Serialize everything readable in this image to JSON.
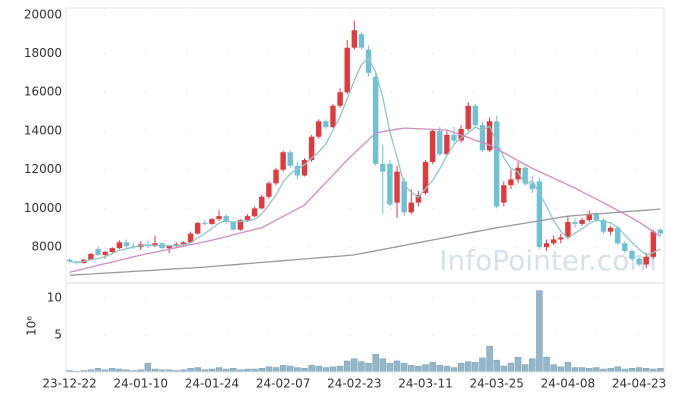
{
  "chart_data": [
    {
      "type": "candlestick",
      "watermark": "InfoPointer.com",
      "categories": [
        "23-12-22",
        null,
        null,
        null,
        null,
        null,
        null,
        null,
        null,
        null,
        "24-01-10",
        null,
        null,
        null,
        null,
        null,
        null,
        null,
        null,
        null,
        "24-01-24",
        null,
        null,
        null,
        null,
        null,
        null,
        null,
        null,
        null,
        "24-02-07",
        null,
        null,
        null,
        null,
        null,
        null,
        null,
        null,
        null,
        "24-02-23",
        null,
        null,
        null,
        null,
        null,
        null,
        null,
        null,
        null,
        "24-03-11",
        null,
        null,
        null,
        null,
        null,
        null,
        null,
        null,
        null,
        "24-03-25",
        null,
        null,
        null,
        null,
        null,
        null,
        null,
        null,
        null,
        "24-04-08",
        null,
        null,
        null,
        null,
        null,
        null,
        null,
        null,
        null,
        "24-04-23",
        null,
        null,
        null
      ],
      "open": [
        7350,
        7250,
        7180,
        7350,
        7900,
        7600,
        7750,
        7950,
        8250,
        8050,
        8000,
        8150,
        8050,
        8200,
        7950,
        8050,
        8150,
        8250,
        8700,
        9250,
        9200,
        9450,
        9600,
        9300,
        8900,
        9400,
        9600,
        10000,
        10600,
        11300,
        12000,
        12900,
        12200,
        11700,
        12500,
        13700,
        14500,
        14200,
        15300,
        16000,
        18300,
        19000,
        18200,
        16800,
        12300,
        12300,
        10300,
        11400,
        9800,
        10300,
        10800,
        12400,
        14000,
        12800,
        13800,
        13500,
        14100,
        15300,
        14300,
        13000,
        14500,
        10300,
        11200,
        11500,
        12100,
        11300,
        11400,
        8000,
        8200,
        8400,
        8500,
        9300,
        9200,
        9400,
        9700,
        9400,
        8800,
        9000,
        8200,
        7800,
        7400,
        7100,
        7500,
        8900
      ],
      "high": [
        7420,
        7300,
        7400,
        7700,
        8050,
        7800,
        8000,
        8350,
        8400,
        8200,
        8300,
        8350,
        8600,
        8250,
        8100,
        8250,
        8300,
        8800,
        9300,
        9400,
        9500,
        9900,
        9700,
        9350,
        9450,
        9700,
        10100,
        10700,
        11400,
        12100,
        13000,
        13000,
        12400,
        12600,
        13800,
        14600,
        14600,
        15400,
        16200,
        18700,
        19700,
        19100,
        18400,
        17000,
        13300,
        12500,
        12200,
        11600,
        11000,
        10900,
        12500,
        14100,
        14200,
        14000,
        14200,
        14300,
        15500,
        15400,
        14500,
        14700,
        14800,
        11400,
        12000,
        12400,
        12200,
        11700,
        11600,
        8400,
        8600,
        8700,
        9600,
        9500,
        9500,
        9900,
        9800,
        9500,
        9100,
        9100,
        8300,
        7900,
        7500,
        7700,
        8900,
        9000
      ],
      "low": [
        7200,
        7120,
        7150,
        7300,
        7550,
        7400,
        7650,
        7900,
        7950,
        7900,
        7850,
        7950,
        8000,
        7900,
        7700,
        7950,
        8000,
        8200,
        8650,
        9100,
        9150,
        9350,
        9200,
        8850,
        8850,
        9300,
        9550,
        9950,
        10500,
        11200,
        11900,
        12100,
        11500,
        11650,
        12400,
        13600,
        14100,
        14150,
        15200,
        15900,
        18200,
        18200,
        16800,
        12200,
        9700,
        10100,
        9500,
        9600,
        9700,
        10100,
        10700,
        12300,
        12700,
        12700,
        13300,
        13400,
        14000,
        14200,
        12900,
        12900,
        10000,
        10100,
        11000,
        11300,
        11200,
        10800,
        7900,
        7800,
        8100,
        8200,
        8400,
        9000,
        9100,
        9300,
        9300,
        8700,
        8600,
        8100,
        7700,
        7300,
        7000,
        6900,
        7400,
        8600
      ],
      "close": [
        7260,
        7180,
        7350,
        7650,
        7600,
        7750,
        7950,
        8250,
        8050,
        8000,
        8150,
        8050,
        8200,
        7950,
        8050,
        8150,
        8250,
        8700,
        9250,
        9200,
        9450,
        9600,
        9300,
        8900,
        9400,
        9600,
        10000,
        10600,
        11300,
        12000,
        12900,
        12200,
        11700,
        12500,
        13700,
        14500,
        14200,
        15300,
        16000,
        18300,
        19200,
        18300,
        17000,
        12300,
        11900,
        10200,
        11900,
        9800,
        10300,
        10700,
        12400,
        14000,
        12800,
        13800,
        13500,
        14100,
        15300,
        14300,
        13000,
        14500,
        10100,
        11200,
        11500,
        12100,
        11300,
        11000,
        8000,
        8200,
        8400,
        8500,
        9300,
        9200,
        9400,
        9700,
        9400,
        8800,
        9000,
        8200,
        7800,
        7400,
        7100,
        7500,
        8800,
        8700
      ],
      "up_color": "#e0393e",
      "down_color": "#6fc2d6",
      "lines": [
        {
          "color": "#8cc7c9",
          "values": [
            7260,
            7220,
            7260,
            7360,
            7410,
            7510,
            7660,
            7840,
            7920,
            8000,
            8080,
            8100,
            8090,
            8070,
            8080,
            8080,
            8120,
            8220,
            8480,
            8710,
            8970,
            9240,
            9360,
            9290,
            9330,
            9360,
            9440,
            9700,
            10180,
            10700,
            11360,
            11800,
            12020,
            12260,
            12600,
            12920,
            13320,
            14040,
            14740,
            15660,
            16600,
            17420,
            17760,
            17020,
            15740,
            13940,
            12660,
            11220,
            10820,
            10580,
            11020,
            11440,
            12040,
            12740,
            13300,
            13640,
            13900,
            14200,
            14040,
            14240,
            13440,
            12620,
            12060,
            11880,
            11240,
            11420,
            10780,
            10120,
            9380,
            8820,
            8480,
            8720,
            8960,
            9220,
            9400,
            9300,
            9260,
            9020,
            8640,
            8240,
            7900,
            7600,
            7720,
            7900
          ]
        },
        {
          "color": "#d08cc4",
          "values": [
            6700,
            6790,
            6880,
            6970,
            7060,
            7150,
            7230,
            7320,
            7410,
            7500,
            7590,
            7670,
            7740,
            7820,
            7900,
            7970,
            8050,
            8130,
            8200,
            8280,
            8360,
            8450,
            8540,
            8640,
            8730,
            8820,
            8910,
            9000,
            9200,
            9390,
            9590,
            9780,
            9980,
            10170,
            10560,
            10950,
            11330,
            11720,
            12110,
            12500,
            12850,
            13200,
            13550,
            13900,
            13960,
            14030,
            14090,
            14150,
            14130,
            14110,
            14100,
            14080,
            14060,
            14050,
            13920,
            13790,
            13660,
            13530,
            13400,
            13270,
            13070,
            12870,
            12670,
            12470,
            12270,
            12070,
            11900,
            11730,
            11560,
            11390,
            11220,
            11050,
            10860,
            10670,
            10480,
            10290,
            10100,
            9900,
            9700,
            9500,
            9300,
            9050,
            8800,
            8550
          ]
        },
        {
          "color": "#9a9a9a",
          "values": [
            6550,
            6570,
            6590,
            6610,
            6640,
            6660,
            6680,
            6700,
            6720,
            6750,
            6770,
            6790,
            6810,
            6840,
            6860,
            6880,
            6900,
            6920,
            6950,
            6970,
            7000,
            7030,
            7060,
            7090,
            7120,
            7150,
            7180,
            7210,
            7240,
            7270,
            7300,
            7330,
            7360,
            7390,
            7420,
            7450,
            7480,
            7510,
            7540,
            7570,
            7600,
            7670,
            7740,
            7810,
            7880,
            7950,
            8020,
            8090,
            8160,
            8230,
            8300,
            8370,
            8440,
            8510,
            8580,
            8650,
            8720,
            8790,
            8860,
            8930,
            9000,
            9060,
            9120,
            9180,
            9240,
            9300,
            9360,
            9420,
            9480,
            9540,
            9600,
            9630,
            9660,
            9690,
            9720,
            9740,
            9770,
            9800,
            9830,
            9860,
            9880,
            9910,
            9940,
            9970
          ]
        }
      ],
      "ylim": [
        6200,
        20350
      ],
      "yticks": [
        8000,
        10000,
        12000,
        14000,
        16000,
        18000,
        20000
      ],
      "grid": true
    },
    {
      "type": "bar",
      "ylabel": "10⁶",
      "values": [
        0.2,
        0.1,
        0.2,
        0.3,
        0.5,
        0.3,
        0.5,
        0.4,
        0.3,
        0.2,
        0.3,
        1.2,
        0.4,
        0.3,
        0.3,
        0.2,
        0.3,
        0.5,
        0.6,
        0.3,
        0.4,
        0.6,
        0.4,
        0.5,
        0.3,
        0.4,
        0.4,
        0.5,
        0.7,
        0.6,
        0.9,
        0.8,
        0.6,
        0.5,
        0.9,
        0.8,
        0.6,
        0.7,
        0.8,
        1.5,
        1.8,
        1.4,
        1.2,
        2.4,
        1.8,
        1.2,
        1.5,
        1.2,
        0.9,
        0.8,
        1.0,
        1.3,
        0.9,
        0.8,
        0.6,
        1.2,
        1.4,
        1.3,
        1.9,
        3.5,
        1.6,
        0.8,
        1.2,
        2.0,
        1.0,
        1.8,
        11.0,
        2.0,
        1.0,
        0.7,
        1.3,
        0.6,
        0.6,
        0.5,
        0.6,
        0.4,
        0.5,
        0.7,
        0.4,
        0.5,
        0.6,
        0.5,
        0.4,
        0.5
      ],
      "color": "#93b7c9",
      "ylim": [
        0,
        11.9
      ],
      "yticks": [
        5,
        10
      ],
      "grid": true
    }
  ]
}
